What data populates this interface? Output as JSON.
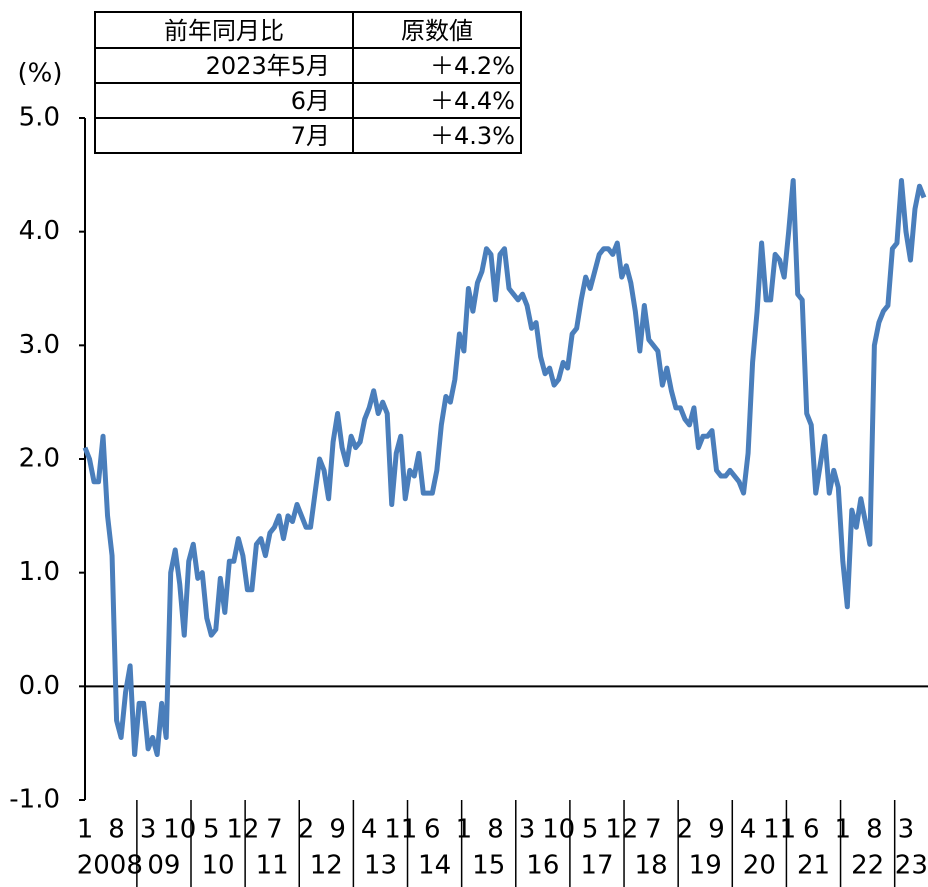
{
  "chart_data": {
    "type": "line",
    "y_unit_label": "(%)",
    "table": {
      "header": [
        "前年同月比",
        "原数値"
      ],
      "rows": [
        [
          "2023年5月",
          "＋4.2%"
        ],
        [
          "6月",
          "＋4.4%"
        ],
        [
          "7月",
          "＋4.3%"
        ]
      ]
    },
    "categories": [
      "1",
      null,
      null,
      null,
      null,
      null,
      null,
      "8",
      null,
      null,
      null,
      null,
      null,
      null,
      "3",
      null,
      null,
      null,
      null,
      null,
      null,
      "10",
      null,
      null,
      null,
      null,
      null,
      null,
      "5",
      null,
      null,
      null,
      null,
      null,
      null,
      "12",
      null,
      null,
      null,
      null,
      null,
      null,
      "7",
      null,
      null,
      null,
      null,
      null,
      null,
      "2",
      null,
      null,
      null,
      null,
      null,
      null,
      "9",
      null,
      null,
      null,
      null,
      null,
      null,
      "4",
      null,
      null,
      null,
      null,
      null,
      null,
      "11",
      null,
      null,
      null,
      null,
      null,
      null,
      "6",
      null,
      null,
      null,
      null,
      null,
      null,
      "1",
      null,
      null,
      null,
      null,
      null,
      null,
      "8",
      null,
      null,
      null,
      null,
      null,
      null,
      "3",
      null,
      null,
      null,
      null,
      null,
      null,
      "10",
      null,
      null,
      null,
      null,
      null,
      null,
      "5",
      null,
      null,
      null,
      null,
      null,
      null,
      "12",
      null,
      null,
      null,
      null,
      null,
      null,
      "7",
      null,
      null,
      null,
      null,
      null,
      null,
      "2",
      null,
      null,
      null,
      null,
      null,
      null,
      "9",
      null,
      null,
      null,
      null,
      null,
      null,
      "4",
      null,
      null,
      null,
      null,
      null,
      null,
      "11",
      null,
      null,
      null,
      null,
      null,
      null,
      "6",
      null,
      null,
      null,
      null,
      null,
      null,
      "1",
      null,
      null,
      null,
      null,
      null,
      null,
      "8",
      null,
      null,
      null,
      null,
      null,
      null,
      "3",
      null,
      null,
      null,
      null
    ],
    "year_labels": [
      "2008",
      "09",
      "10",
      "11",
      "12",
      "13",
      "14",
      "15",
      "16",
      "17",
      "18",
      "19",
      "20",
      "21",
      "22",
      "23"
    ],
    "series": [
      {
        "name": "原数値",
        "color": "#4a7ebb",
        "values": [
          2.1,
          2.0,
          1.8,
          1.8,
          2.2,
          1.5,
          1.15,
          -0.3,
          -0.45,
          -0.05,
          0.18,
          -0.6,
          -0.15,
          -0.15,
          -0.55,
          -0.45,
          -0.6,
          -0.15,
          -0.45,
          1.0,
          1.2,
          0.9,
          0.45,
          1.1,
          1.25,
          0.95,
          1.0,
          0.6,
          0.45,
          0.5,
          0.95,
          0.65,
          1.1,
          1.1,
          1.3,
          1.15,
          0.85,
          0.85,
          1.25,
          1.3,
          1.15,
          1.35,
          1.4,
          1.5,
          1.3,
          1.5,
          1.45,
          1.6,
          1.5,
          1.4,
          1.4,
          1.7,
          2.0,
          1.9,
          1.65,
          2.15,
          2.4,
          2.1,
          1.95,
          2.2,
          2.1,
          2.15,
          2.35,
          2.45,
          2.6,
          2.4,
          2.5,
          2.4,
          1.6,
          2.05,
          2.2,
          1.65,
          1.9,
          1.85,
          2.05,
          1.7,
          1.7,
          1.7,
          1.9,
          2.3,
          2.55,
          2.5,
          2.7,
          3.1,
          2.95,
          3.5,
          3.3,
          3.55,
          3.65,
          3.85,
          3.8,
          3.4,
          3.8,
          3.85,
          3.5,
          3.45,
          3.4,
          3.45,
          3.35,
          3.15,
          3.2,
          2.9,
          2.75,
          2.8,
          2.65,
          2.7,
          2.85,
          2.8,
          3.1,
          3.15,
          3.4,
          3.6,
          3.5,
          3.65,
          3.8,
          3.85,
          3.85,
          3.8,
          3.9,
          3.6,
          3.7,
          3.55,
          3.3,
          2.95,
          3.35,
          3.05,
          3.0,
          2.95,
          2.65,
          2.8,
          2.6,
          2.45,
          2.45,
          2.35,
          2.3,
          2.45,
          2.1,
          2.2,
          2.2,
          2.25,
          1.9,
          1.85,
          1.85,
          1.9,
          1.85,
          1.8,
          1.7,
          2.05,
          2.85,
          3.3,
          3.9,
          3.4,
          3.4,
          3.8,
          3.75,
          3.6,
          4.0,
          4.45,
          3.45,
          3.4,
          2.4,
          2.3,
          1.7,
          1.95,
          2.2,
          1.7,
          1.9,
          1.75,
          1.1,
          0.7,
          1.55,
          1.4,
          1.65,
          1.45,
          1.25,
          3.0,
          3.2,
          3.3,
          3.35,
          3.85,
          3.9,
          4.45,
          4.0,
          3.75,
          4.2,
          4.4,
          4.3
        ]
      }
    ],
    "ylim": [
      -1,
      5
    ],
    "yticks": [
      {
        "value": -1,
        "label": "-1.0"
      },
      {
        "value": 0,
        "label": "0.0"
      },
      {
        "value": 1,
        "label": "1.0"
      },
      {
        "value": 2,
        "label": "2.0"
      },
      {
        "value": 3,
        "label": "3.0"
      },
      {
        "value": 4,
        "label": "4.0"
      },
      {
        "value": 5,
        "label": "5.0"
      }
    ],
    "zero_line": true
  }
}
